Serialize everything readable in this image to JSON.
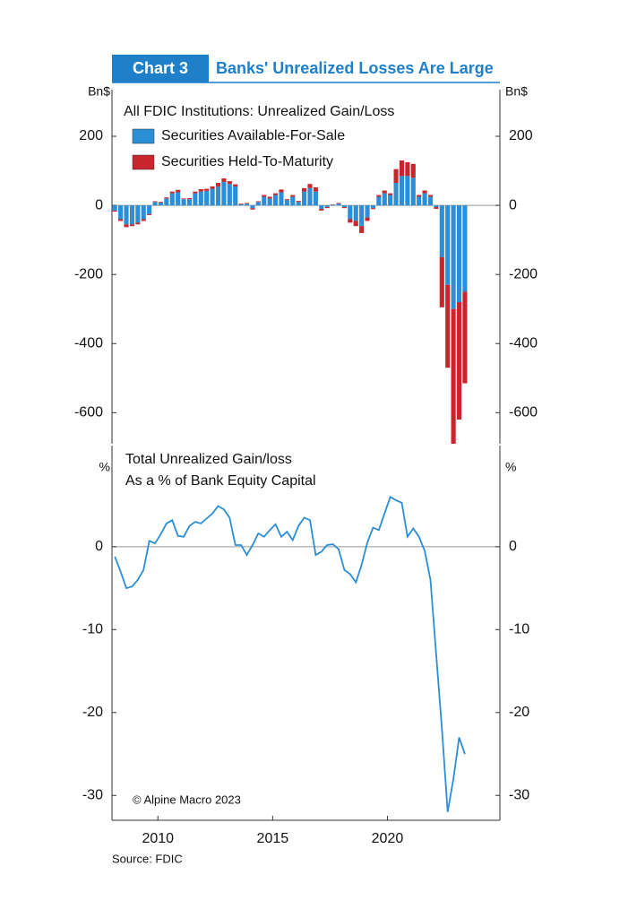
{
  "header": {
    "label": "Chart 3",
    "title": "Banks' Unrealized Losses Are Large"
  },
  "source": "Source: FDIC",
  "chart_data": [
    {
      "type": "bar",
      "stacked": true,
      "subtitle": "All FDIC Institutions: Unrealized Gain/Loss",
      "y_label": "Bn$",
      "x": [
        2008.125,
        2008.375,
        2008.625,
        2008.875,
        2009.125,
        2009.375,
        2009.625,
        2009.875,
        2010.125,
        2010.375,
        2010.625,
        2010.875,
        2011.125,
        2011.375,
        2011.625,
        2011.875,
        2012.125,
        2012.375,
        2012.625,
        2012.875,
        2013.125,
        2013.375,
        2013.625,
        2013.875,
        2014.125,
        2014.375,
        2014.625,
        2014.875,
        2015.125,
        2015.375,
        2015.625,
        2015.875,
        2016.125,
        2016.375,
        2016.625,
        2016.875,
        2017.125,
        2017.375,
        2017.625,
        2017.875,
        2018.125,
        2018.375,
        2018.625,
        2018.875,
        2019.125,
        2019.375,
        2019.625,
        2019.875,
        2020.125,
        2020.375,
        2020.625,
        2020.875,
        2021.125,
        2021.375,
        2021.625,
        2021.875,
        2022.125,
        2022.375,
        2022.625,
        2022.875,
        2023.125,
        2023.375
      ],
      "series": [
        {
          "name": "Securities Available-For-Sale",
          "color": "#2b8ed6",
          "values": [
            -15,
            -40,
            -55,
            -55,
            -50,
            -40,
            -25,
            10,
            8,
            20,
            35,
            38,
            18,
            18,
            35,
            40,
            42,
            48,
            55,
            68,
            62,
            55,
            3,
            5,
            -8,
            10,
            25,
            20,
            30,
            38,
            15,
            25,
            10,
            40,
            50,
            40,
            -10,
            -5,
            2,
            5,
            -5,
            -40,
            -45,
            -60,
            -35,
            -8,
            25,
            35,
            30,
            65,
            85,
            85,
            80,
            25,
            35,
            25,
            -5,
            -150,
            -230,
            -300,
            -280,
            -250
          ]
        },
        {
          "name": "Securities Held-To-Maturity",
          "color": "#c8252c",
          "values": [
            -3,
            -5,
            -8,
            -5,
            -5,
            -5,
            -3,
            2,
            2,
            3,
            5,
            7,
            2,
            3,
            5,
            7,
            6,
            7,
            10,
            10,
            8,
            6,
            2,
            2,
            -4,
            2,
            5,
            5,
            5,
            8,
            3,
            5,
            3,
            10,
            12,
            12,
            -5,
            -3,
            1,
            2,
            -3,
            -10,
            -15,
            -20,
            -10,
            -3,
            5,
            8,
            5,
            40,
            45,
            40,
            40,
            5,
            8,
            5,
            -5,
            -145,
            -240,
            -390,
            -340,
            -265
          ]
        }
      ],
      "xlim": [
        2008,
        2024.9
      ],
      "ylim": [
        -690,
        335
      ],
      "yticks": [
        -600,
        -400,
        -200,
        0,
        200
      ]
    },
    {
      "type": "line",
      "subtitle": [
        "Total Unrealized Gain/loss",
        "As a % of Bank Equity Capital"
      ],
      "y_label": "%",
      "annotation": "© Alpine Macro 2023",
      "x": [
        2008.125,
        2008.375,
        2008.625,
        2008.875,
        2009.125,
        2009.375,
        2009.625,
        2009.875,
        2010.125,
        2010.375,
        2010.625,
        2010.875,
        2011.125,
        2011.375,
        2011.625,
        2011.875,
        2012.125,
        2012.375,
        2012.625,
        2012.875,
        2013.125,
        2013.375,
        2013.625,
        2013.875,
        2014.125,
        2014.375,
        2014.625,
        2014.875,
        2015.125,
        2015.375,
        2015.625,
        2015.875,
        2016.125,
        2016.375,
        2016.625,
        2016.875,
        2017.125,
        2017.375,
        2017.625,
        2017.875,
        2018.125,
        2018.375,
        2018.625,
        2018.875,
        2019.125,
        2019.375,
        2019.625,
        2019.875,
        2020.125,
        2020.375,
        2020.625,
        2020.875,
        2021.125,
        2021.375,
        2021.625,
        2021.875,
        2022.125,
        2022.375,
        2022.625,
        2022.875,
        2023.125,
        2023.375
      ],
      "series": [
        {
          "color": "#2b8ed6",
          "values": [
            -1.2,
            -3,
            -5,
            -4.8,
            -4,
            -2.8,
            0.7,
            0.4,
            1.5,
            2.8,
            3.2,
            1.3,
            1.2,
            2.5,
            3.0,
            2.8,
            3.4,
            4.0,
            4.9,
            4.5,
            3.5,
            0.2,
            0.2,
            -1.0,
            0.2,
            1.6,
            1.2,
            2.0,
            2.7,
            1.2,
            1.8,
            0.8,
            2.5,
            3.5,
            3.2,
            -1.0,
            -0.6,
            0.2,
            0.3,
            -0.3,
            -2.8,
            -3.3,
            -4.3,
            -2.2,
            0.5,
            2.3,
            2.0,
            4.0,
            6.0,
            5.6,
            5.3,
            1.2,
            2.2,
            1.2,
            -0.5,
            -4,
            -13,
            -22,
            -32,
            -28,
            -23,
            -25
          ]
        }
      ],
      "xlim": [
        2008,
        2024.9
      ],
      "xticks": [
        2010,
        2015,
        2020
      ],
      "ylim": [
        -33,
        12.2
      ],
      "yticks": [
        -30,
        -20,
        -10,
        0
      ]
    }
  ]
}
